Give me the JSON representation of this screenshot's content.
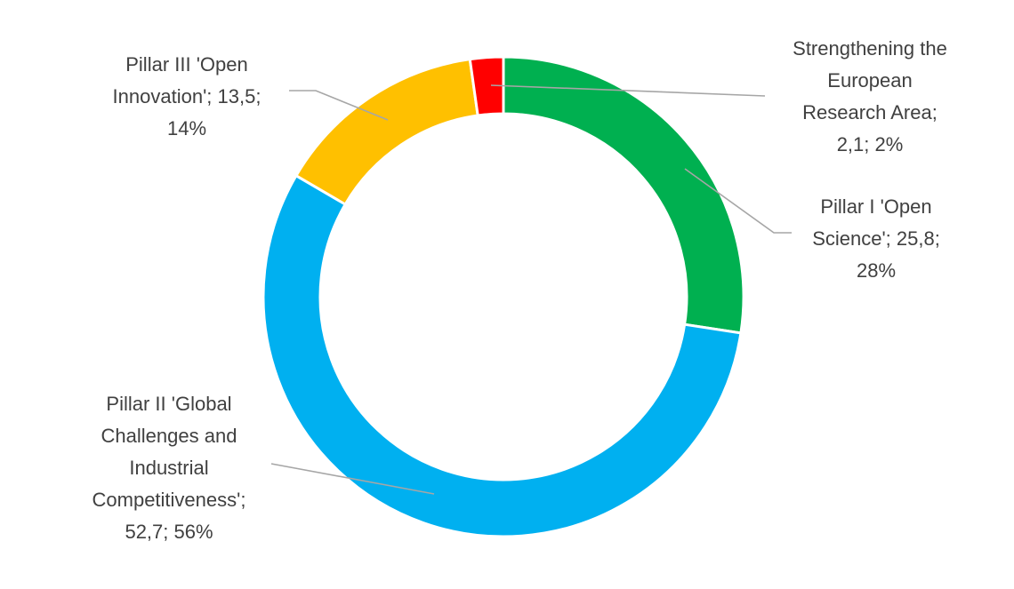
{
  "chart_data": {
    "type": "pie",
    "variant": "donut",
    "title": "",
    "legend": "none",
    "start_angle_deg": 0,
    "direction": "clockwise",
    "series": [
      {
        "name": "",
        "slices": [
          {
            "label": "Pillar I 'Open Science'",
            "value": 25.8,
            "percent": 28,
            "color": "#00B050",
            "label_lines": [
              "Pillar I 'Open",
              "Science'; 25,8;",
              "28%"
            ]
          },
          {
            "label": "Pillar II 'Global Challenges and Industrial Competitiveness'",
            "value": 52.7,
            "percent": 56,
            "color": "#00B0F0",
            "label_lines": [
              "Pillar II 'Global",
              "Challenges and",
              "Industrial",
              "Competitiveness';",
              "52,7; 56%"
            ]
          },
          {
            "label": "Pillar III 'Open Innovation'",
            "value": 13.5,
            "percent": 14,
            "color": "#FFC000",
            "label_lines": [
              "Pillar III 'Open",
              "Innovation'; 13,5;",
              "14%"
            ]
          },
          {
            "label": "Strengthening the European Research Area",
            "value": 2.1,
            "percent": 2,
            "color": "#FF0000",
            "label_lines": [
              "Strengthening the",
              "European",
              "Research Area;",
              "2,1; 2%"
            ]
          }
        ]
      }
    ]
  }
}
